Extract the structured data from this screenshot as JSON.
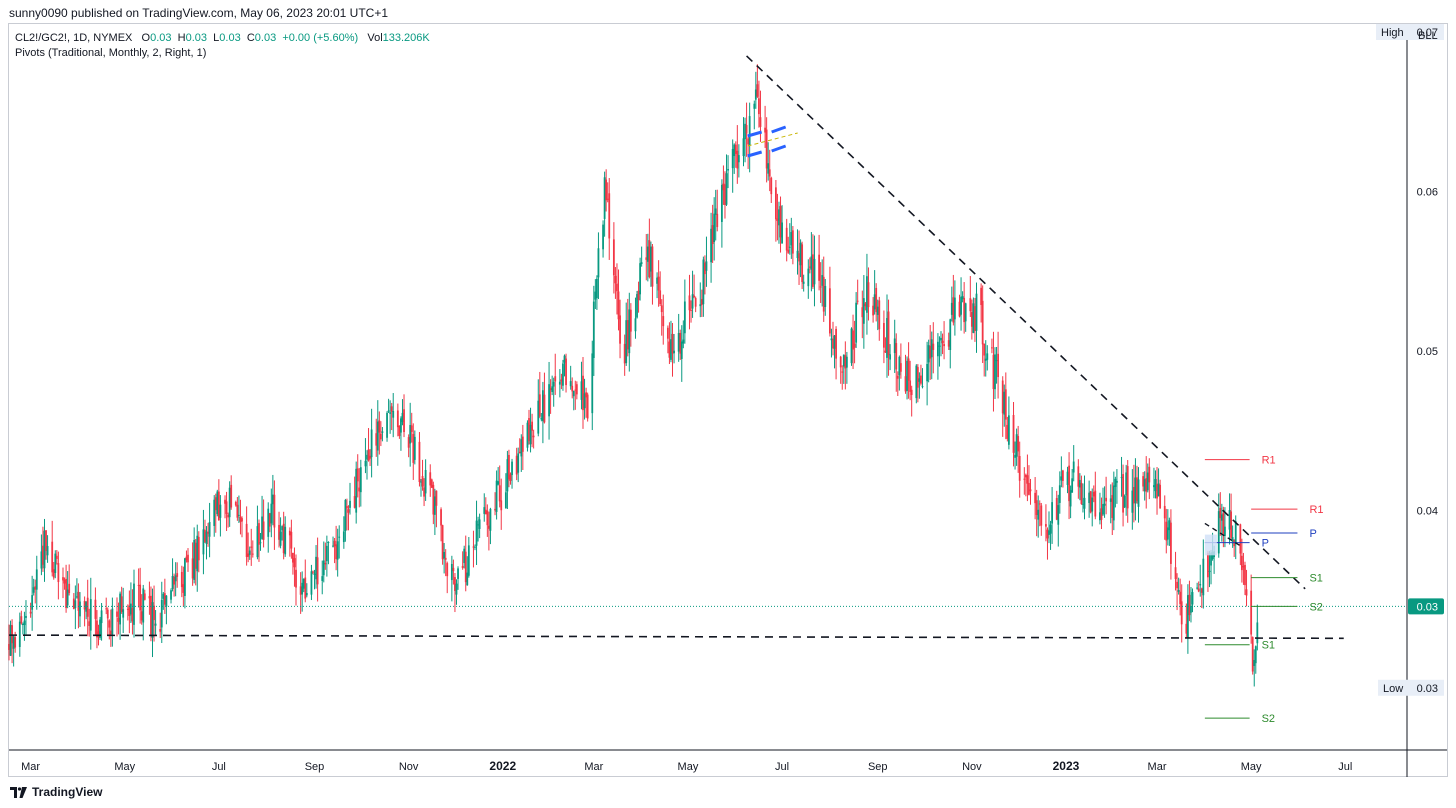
{
  "header": {
    "published": "sunny0090 published on TradingView.com, May 06, 2023 20:01 UTC+1"
  },
  "legend": {
    "symbol": "CL2!/GC2!, 1D, NYMEX",
    "o_label": "O",
    "o_value": "0.03",
    "h_label": "H",
    "h_value": "0.03",
    "l_label": "L",
    "l_value": "0.03",
    "c_label": "C",
    "c_value": "0.03",
    "change": "+0.00 (+5.60%)",
    "vol_label": "Vol",
    "vol_value": "133.206K",
    "indicator": "Pivots (Traditional, Monthly, 2, Right, 1)"
  },
  "price_axis": {
    "currency": "BLL",
    "high_label": "High",
    "high_value": "0.07",
    "low_label": "Low",
    "low_value": "0.03",
    "last_value": "0.03"
  },
  "footer": {
    "brand": "TradingView",
    "logo_icon": "tradingview-logo-icon"
  },
  "colors": {
    "up": "#089981",
    "down": "#f23645",
    "pivot_p": "#1e3fbf",
    "pivot_s": "#2e8b2e",
    "pivot_r": "#f23645",
    "last_line": "#089981"
  },
  "chart_data": {
    "type": "candlestick",
    "x_labels": [
      "Mar",
      "May",
      "Jul",
      "Sep",
      "Nov",
      "2022",
      "Mar",
      "May",
      "Jul",
      "Sep",
      "Nov",
      "2023",
      "Mar",
      "May",
      "Jul"
    ],
    "y_ticks": [
      "0.06",
      "0.05",
      "0.04"
    ],
    "ylim": [
      0.025,
      0.0705
    ],
    "x_range": [
      "2021-02-15",
      "2023-08-10"
    ],
    "close_anchors": [
      [
        "2021-02-15",
        0.0315
      ],
      [
        "2021-03-01",
        0.034
      ],
      [
        "2021-03-10",
        0.038
      ],
      [
        "2021-03-25",
        0.034
      ],
      [
        "2021-04-15",
        0.033
      ],
      [
        "2021-05-10",
        0.0345
      ],
      [
        "2021-05-20",
        0.033
      ],
      [
        "2021-06-15",
        0.037
      ],
      [
        "2021-07-05",
        0.041
      ],
      [
        "2021-07-20",
        0.038
      ],
      [
        "2021-08-05",
        0.04
      ],
      [
        "2021-08-25",
        0.035
      ],
      [
        "2021-09-10",
        0.037
      ],
      [
        "2021-09-25",
        0.0405
      ],
      [
        "2021-10-10",
        0.045
      ],
      [
        "2021-10-25",
        0.046
      ],
      [
        "2021-11-15",
        0.041
      ],
      [
        "2021-12-01",
        0.035
      ],
      [
        "2021-12-15",
        0.0385
      ],
      [
        "2022-01-10",
        0.043
      ],
      [
        "2022-02-10",
        0.049
      ],
      [
        "2022-02-25",
        0.047
      ],
      [
        "2022-03-08",
        0.06
      ],
      [
        "2022-03-20",
        0.05
      ],
      [
        "2022-04-05",
        0.056
      ],
      [
        "2022-04-20",
        0.05
      ],
      [
        "2022-05-10",
        0.054
      ],
      [
        "2022-05-25",
        0.06
      ],
      [
        "2022-06-08",
        0.064
      ],
      [
        "2022-06-15",
        0.067
      ],
      [
        "2022-06-25",
        0.058
      ],
      [
        "2022-07-10",
        0.056
      ],
      [
        "2022-07-25",
        0.054
      ],
      [
        "2022-08-10",
        0.049
      ],
      [
        "2022-08-25",
        0.054
      ],
      [
        "2022-09-10",
        0.05
      ],
      [
        "2022-09-25",
        0.048
      ],
      [
        "2022-10-10",
        0.05
      ],
      [
        "2022-10-25",
        0.053
      ],
      [
        "2022-11-05",
        0.0525
      ],
      [
        "2022-11-20",
        0.047
      ],
      [
        "2022-12-05",
        0.042
      ],
      [
        "2022-12-20",
        0.0395
      ],
      [
        "2023-01-05",
        0.042
      ],
      [
        "2023-01-20",
        0.04
      ],
      [
        "2023-02-05",
        0.041
      ],
      [
        "2023-02-20",
        0.042
      ],
      [
        "2023-03-05",
        0.0405
      ],
      [
        "2023-03-18",
        0.033
      ],
      [
        "2023-03-28",
        0.035
      ],
      [
        "2023-04-12",
        0.04
      ],
      [
        "2023-04-24",
        0.0375
      ],
      [
        "2023-05-02",
        0.031
      ],
      [
        "2023-05-05",
        0.033
      ]
    ],
    "pivot_levels": [
      {
        "label": "R1",
        "value": 0.0432,
        "color": "#f23645",
        "from": "2023-04-01",
        "to": "2023-04-30"
      },
      {
        "label": "R1",
        "value": 0.0401,
        "color": "#f23645",
        "from": "2023-05-01",
        "to": "2023-05-31"
      },
      {
        "label": "P",
        "value": 0.0386,
        "color": "#1e3fbf",
        "from": "2023-05-01",
        "to": "2023-05-31"
      },
      {
        "label": "P",
        "value": 0.038,
        "color": "#1e3fbf",
        "from": "2023-04-01",
        "to": "2023-04-30"
      },
      {
        "label": "S1",
        "value": 0.0358,
        "color": "#2e8b2e",
        "from": "2023-05-01",
        "to": "2023-05-31"
      },
      {
        "label": "S2",
        "value": 0.034,
        "color": "#2e8b2e",
        "from": "2023-05-01",
        "to": "2023-05-31"
      },
      {
        "label": "S1",
        "value": 0.0316,
        "color": "#2e8b2e",
        "from": "2023-04-01",
        "to": "2023-04-30"
      },
      {
        "label": "S2",
        "value": 0.027,
        "color": "#2e8b2e",
        "from": "2023-04-01",
        "to": "2023-04-30"
      }
    ],
    "trendlines": [
      {
        "from": [
          "2022-06-08",
          0.0685
        ],
        "to": [
          "2023-06-05",
          0.0351
        ],
        "style": "dashed"
      },
      {
        "from": [
          "2021-02-15",
          0.0322
        ],
        "to": [
          "2023-06-30",
          0.032
        ],
        "style": "dashed"
      }
    ],
    "last_price": 0.034
  }
}
